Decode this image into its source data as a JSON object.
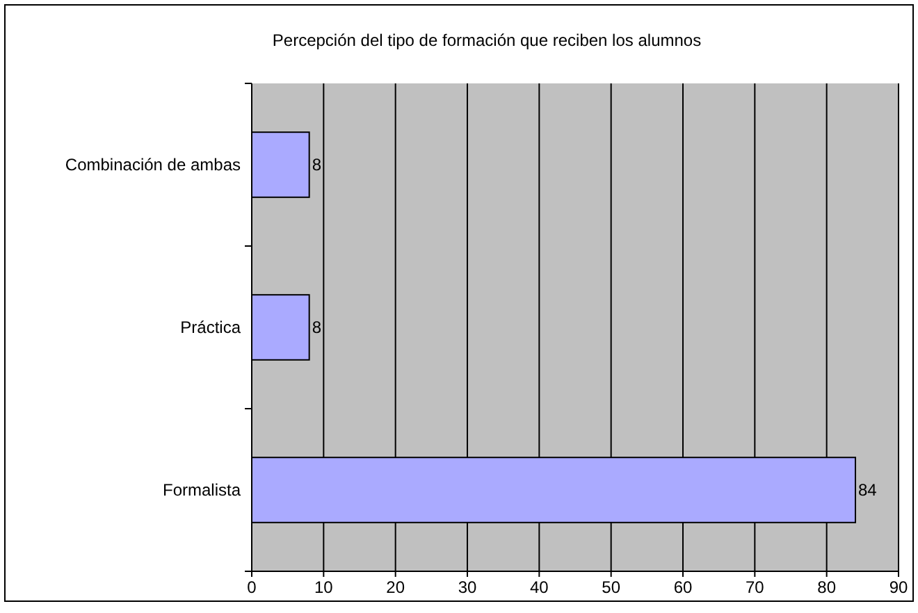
{
  "chart_data": {
    "type": "bar",
    "orientation": "horizontal",
    "title": "Percepción del tipo de formación que reciben los alumnos",
    "categories": [
      "Combinación de ambas",
      "Práctica",
      "Formalista"
    ],
    "values": [
      8,
      8,
      84
    ],
    "color": "#aaaaff",
    "xlim": [
      0,
      90
    ],
    "xticks": [
      0,
      10,
      20,
      30,
      40,
      50,
      60,
      70,
      80,
      90
    ],
    "grid": "x",
    "data_labels": true
  }
}
